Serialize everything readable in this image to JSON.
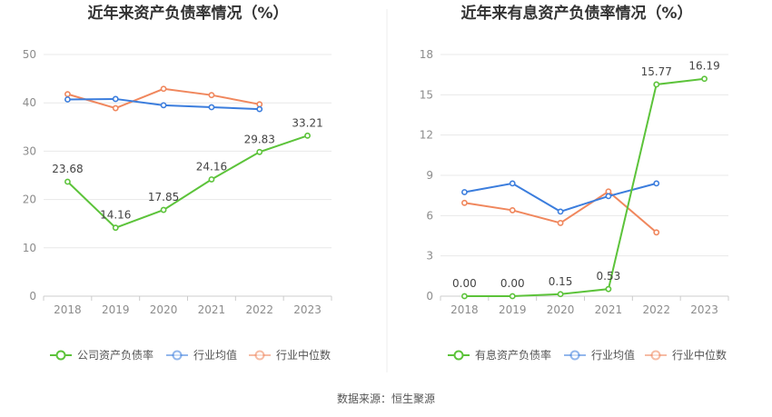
{
  "chart_data": [
    {
      "type": "line",
      "title": "近年来资产负债率情况（%）",
      "categories": [
        "2018",
        "2019",
        "2020",
        "2021",
        "2022",
        "2023"
      ],
      "ylim": [
        0,
        50
      ],
      "yticks": [
        0,
        10,
        20,
        30,
        40,
        50
      ],
      "grid": true,
      "legend_position": "bottom",
      "series": [
        {
          "name": "公司资产负债率",
          "color": "#5cc33a",
          "values": [
            23.68,
            14.16,
            17.85,
            24.16,
            29.83,
            33.21
          ],
          "labels": [
            "23.68",
            "14.16",
            "17.85",
            "24.16",
            "29.83",
            "33.21"
          ]
        },
        {
          "name": "行业均值",
          "color": "#3b7ddd",
          "values": [
            40.7,
            40.8,
            39.5,
            39.1,
            38.7,
            null
          ],
          "labels": []
        },
        {
          "name": "行业中位数",
          "color": "#f0875d",
          "values": [
            41.8,
            38.9,
            42.9,
            41.6,
            39.7,
            null
          ],
          "labels": []
        }
      ]
    },
    {
      "type": "line",
      "title": "近年来有息资产负债率情况（%）",
      "categories": [
        "2018",
        "2019",
        "2020",
        "2021",
        "2022",
        "2023"
      ],
      "ylim": [
        0,
        18
      ],
      "yticks": [
        0,
        3,
        6,
        9,
        12,
        15,
        18
      ],
      "grid": true,
      "legend_position": "bottom",
      "series": [
        {
          "name": "有息资产负债率",
          "color": "#5cc33a",
          "values": [
            0.0,
            0.0,
            0.15,
            0.53,
            15.77,
            16.19
          ],
          "labels": [
            "0.00",
            "0.00",
            "0.15",
            "0.53",
            "15.77",
            "16.19"
          ]
        },
        {
          "name": "行业均值",
          "color": "#3b7ddd",
          "values": [
            7.75,
            8.4,
            6.3,
            7.45,
            8.4,
            null
          ],
          "labels": []
        },
        {
          "name": "行业中位数",
          "color": "#f0875d",
          "values": [
            6.95,
            6.4,
            5.45,
            7.8,
            4.75,
            null
          ],
          "labels": []
        }
      ]
    }
  ],
  "footer": "数据来源：恒生聚源"
}
